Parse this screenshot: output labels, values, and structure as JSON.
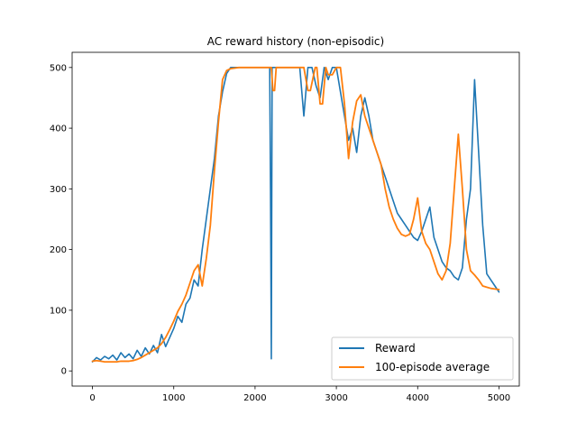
{
  "chart_data": {
    "type": "line",
    "title": "AC reward history (non-episodic)",
    "xlabel": "",
    "ylabel": "",
    "xlim": [
      -250,
      5250
    ],
    "ylim": [
      -25,
      525
    ],
    "x_ticks": [
      0,
      1000,
      2000,
      3000,
      4000,
      5000
    ],
    "x_tick_labels": [
      "0",
      "1000",
      "2000",
      "3000",
      "4000",
      "5000"
    ],
    "y_ticks": [
      0,
      100,
      200,
      300,
      400,
      500
    ],
    "y_tick_labels": [
      "0",
      "100",
      "200",
      "300",
      "400",
      "500"
    ],
    "grid": false,
    "legend_position": "lower-right",
    "series": [
      {
        "name": "Reward",
        "color": "#1f77b4",
        "x": [
          0,
          50,
          100,
          150,
          200,
          250,
          300,
          350,
          400,
          450,
          500,
          550,
          600,
          650,
          700,
          750,
          800,
          850,
          900,
          950,
          1000,
          1050,
          1100,
          1150,
          1200,
          1250,
          1300,
          1350,
          1400,
          1450,
          1500,
          1550,
          1600,
          1650,
          1700,
          1750,
          1800,
          1850,
          1900,
          1950,
          2000,
          2050,
          2100,
          2150,
          2180,
          2190,
          2200,
          2210,
          2250,
          2300,
          2350,
          2400,
          2450,
          2500,
          2550,
          2600,
          2650,
          2700,
          2750,
          2800,
          2850,
          2900,
          2950,
          3000,
          3050,
          3100,
          3150,
          3200,
          3250,
          3300,
          3350,
          3400,
          3450,
          3500,
          3550,
          3600,
          3650,
          3700,
          3750,
          3800,
          3850,
          3900,
          3950,
          4000,
          4050,
          4100,
          4150,
          4200,
          4250,
          4300,
          4350,
          4400,
          4450,
          4500,
          4550,
          4600,
          4650,
          4700,
          4750,
          4800,
          4850,
          4900,
          4950,
          5000
        ],
        "values": [
          15,
          22,
          18,
          24,
          20,
          26,
          18,
          30,
          22,
          28,
          20,
          34,
          24,
          38,
          28,
          42,
          30,
          60,
          40,
          55,
          70,
          90,
          80,
          110,
          120,
          150,
          140,
          200,
          250,
          300,
          350,
          420,
          460,
          490,
          500,
          500,
          500,
          500,
          500,
          500,
          500,
          500,
          500,
          500,
          500,
          300,
          20,
          500,
          500,
          500,
          500,
          500,
          500,
          500,
          500,
          420,
          500,
          500,
          470,
          450,
          500,
          480,
          500,
          500,
          460,
          420,
          380,
          400,
          360,
          420,
          450,
          420,
          380,
          360,
          340,
          320,
          300,
          280,
          260,
          250,
          240,
          230,
          220,
          215,
          230,
          250,
          270,
          220,
          200,
          180,
          170,
          165,
          155,
          150,
          170,
          250,
          300,
          480,
          360,
          240,
          160,
          150,
          140,
          130
        ]
      },
      {
        "name": "100-episode average",
        "color": "#ff7f0e",
        "x": [
          0,
          50,
          100,
          150,
          200,
          250,
          300,
          350,
          400,
          450,
          500,
          550,
          600,
          650,
          700,
          750,
          800,
          850,
          900,
          950,
          1000,
          1050,
          1100,
          1150,
          1200,
          1250,
          1300,
          1350,
          1400,
          1450,
          1500,
          1550,
          1600,
          1650,
          1700,
          1750,
          1800,
          1850,
          1900,
          1950,
          2000,
          2050,
          2100,
          2150,
          2200,
          2220,
          2240,
          2260,
          2300,
          2350,
          2400,
          2450,
          2500,
          2550,
          2600,
          2650,
          2680,
          2740,
          2760,
          2800,
          2830,
          2870,
          2900,
          2950,
          3000,
          3050,
          3100,
          3150,
          3200,
          3250,
          3300,
          3350,
          3400,
          3450,
          3500,
          3550,
          3600,
          3650,
          3700,
          3750,
          3800,
          3850,
          3900,
          3950,
          4000,
          4050,
          4100,
          4150,
          4200,
          4250,
          4300,
          4350,
          4400,
          4450,
          4500,
          4550,
          4600,
          4650,
          4700,
          4750,
          4800,
          4850,
          4900,
          4950,
          5000
        ],
        "values": [
          16,
          17,
          16,
          15,
          15,
          15,
          15,
          16,
          16,
          16,
          17,
          19,
          22,
          26,
          30,
          34,
          38,
          45,
          55,
          68,
          82,
          98,
          110,
          125,
          145,
          165,
          175,
          140,
          185,
          240,
          330,
          410,
          480,
          495,
          498,
          499,
          500,
          500,
          500,
          500,
          500,
          500,
          500,
          500,
          500,
          462,
          462,
          500,
          500,
          500,
          500,
          500,
          500,
          500,
          500,
          462,
          462,
          500,
          500,
          440,
          440,
          500,
          488,
          488,
          500,
          500,
          440,
          350,
          410,
          445,
          455,
          420,
          400,
          380,
          360,
          340,
          300,
          270,
          250,
          235,
          225,
          222,
          225,
          250,
          285,
          230,
          210,
          200,
          180,
          160,
          150,
          165,
          210,
          300,
          390,
          300,
          200,
          165,
          158,
          150,
          140,
          138,
          136,
          135,
          134
        ]
      }
    ]
  }
}
